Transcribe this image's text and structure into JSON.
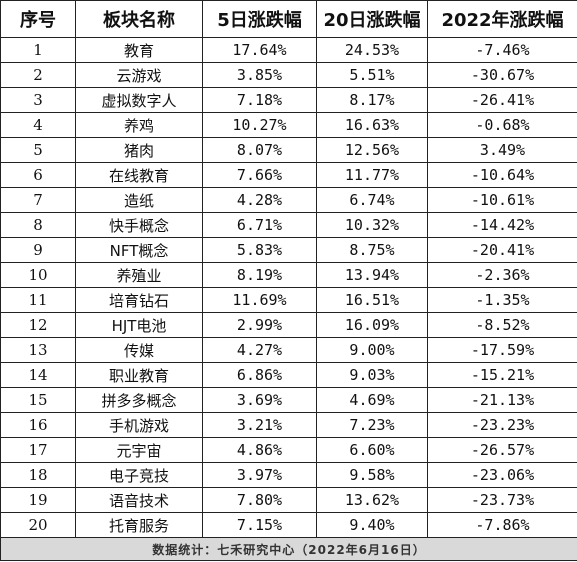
{
  "headers": [
    "序号",
    "板块名称",
    "5日涨跌幅",
    "20日涨跌幅",
    "2022年涨跌幅"
  ],
  "rows": [
    {
      "idx": "1",
      "name": "教育",
      "d5": "17.64%",
      "d20": "24.53%",
      "ytd": "-7.46%"
    },
    {
      "idx": "2",
      "name": "云游戏",
      "d5": "3.85%",
      "d20": "5.51%",
      "ytd": "-30.67%"
    },
    {
      "idx": "3",
      "name": "虚拟数字人",
      "d5": "7.18%",
      "d20": "8.17%",
      "ytd": "-26.41%"
    },
    {
      "idx": "4",
      "name": "养鸡",
      "d5": "10.27%",
      "d20": "16.63%",
      "ytd": "-0.68%"
    },
    {
      "idx": "5",
      "name": "猪肉",
      "d5": "8.07%",
      "d20": "12.56%",
      "ytd": "3.49%"
    },
    {
      "idx": "6",
      "name": "在线教育",
      "d5": "7.66%",
      "d20": "11.77%",
      "ytd": "-10.64%"
    },
    {
      "idx": "7",
      "name": "造纸",
      "d5": "4.28%",
      "d20": "6.74%",
      "ytd": "-10.61%"
    },
    {
      "idx": "8",
      "name": "快手概念",
      "d5": "6.71%",
      "d20": "10.32%",
      "ytd": "-14.42%"
    },
    {
      "idx": "9",
      "name": "NFT概念",
      "d5": "5.83%",
      "d20": "8.75%",
      "ytd": "-20.41%"
    },
    {
      "idx": "10",
      "name": "养殖业",
      "d5": "8.19%",
      "d20": "13.94%",
      "ytd": "-2.36%"
    },
    {
      "idx": "11",
      "name": "培育钻石",
      "d5": "11.69%",
      "d20": "16.51%",
      "ytd": "-1.35%"
    },
    {
      "idx": "12",
      "name": "HJT电池",
      "d5": "2.99%",
      "d20": "16.09%",
      "ytd": "-8.52%"
    },
    {
      "idx": "13",
      "name": "传媒",
      "d5": "4.27%",
      "d20": "9.00%",
      "ytd": "-17.59%"
    },
    {
      "idx": "14",
      "name": "职业教育",
      "d5": "6.86%",
      "d20": "9.03%",
      "ytd": "-15.21%"
    },
    {
      "idx": "15",
      "name": "拼多多概念",
      "d5": "3.69%",
      "d20": "4.69%",
      "ytd": "-21.13%"
    },
    {
      "idx": "16",
      "name": "手机游戏",
      "d5": "3.21%",
      "d20": "7.23%",
      "ytd": "-23.23%"
    },
    {
      "idx": "17",
      "name": "元宇宙",
      "d5": "4.86%",
      "d20": "6.60%",
      "ytd": "-26.57%"
    },
    {
      "idx": "18",
      "name": "电子竞技",
      "d5": "3.97%",
      "d20": "9.58%",
      "ytd": "-23.06%"
    },
    {
      "idx": "19",
      "name": "语音技术",
      "d5": "7.80%",
      "d20": "13.62%",
      "ytd": "-23.73%"
    },
    {
      "idx": "20",
      "name": "托育服务",
      "d5": "7.15%",
      "d20": "9.40%",
      "ytd": "-7.86%"
    }
  ],
  "footer": "数据统计：七禾研究中心（2022年6月16日）"
}
